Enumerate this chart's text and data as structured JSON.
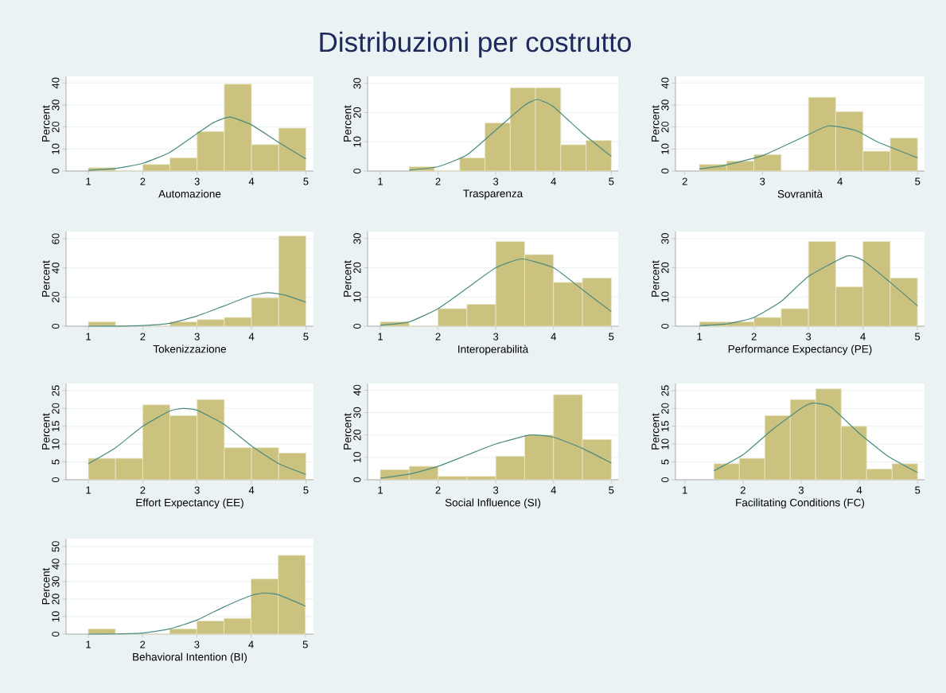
{
  "chart_data": [
    {
      "type": "other",
      "title": "Distribuzioni per costrutto"
    },
    {
      "type": "histogram",
      "xlabel": "Automazione",
      "ylabel": "Percent",
      "bins": [
        1,
        1.5,
        2,
        2.5,
        3,
        3.5,
        4,
        4.5,
        5
      ],
      "values": [
        1.5,
        0,
        3,
        6,
        18,
        39.5,
        12,
        19.5
      ],
      "color": "#cbc27f",
      "xlim": [
        0.59,
        5.14
      ],
      "ylim": [
        0,
        43
      ],
      "xticks": [
        1,
        2,
        3,
        4,
        5
      ],
      "yticks": [
        0,
        10,
        20,
        30,
        40
      ],
      "grid": "y",
      "series": [
        {
          "type": "line",
          "color": "#4b8b82",
          "x": [
            1,
            1.5,
            2,
            2.5,
            3,
            3.3,
            3.6,
            4,
            4.5,
            5
          ],
          "values": [
            0.3,
            1.2,
            3.5,
            8.5,
            17,
            22,
            24.5,
            21,
            13,
            5.5
          ]
        }
      ]
    },
    {
      "type": "histogram",
      "xlabel": "Trasparenza",
      "ylabel": "Percent",
      "bins": [
        1.5,
        1.9375,
        2.375,
        2.8125,
        3.25,
        3.6875,
        4.125,
        4.5625,
        5
      ],
      "values": [
        1.5,
        0,
        4.5,
        16.5,
        28.5,
        28.5,
        9,
        10.5
      ],
      "color": "#cbc27f",
      "xlim": [
        0.78,
        5.12
      ],
      "ylim": [
        0,
        32.4
      ],
      "xticks": [
        1,
        2,
        3,
        4,
        5
      ],
      "yticks": [
        0,
        10,
        20,
        30
      ],
      "grid": "y",
      "series": [
        {
          "type": "line",
          "color": "#4b8b82",
          "x": [
            1.5,
            2,
            2.5,
            3,
            3.5,
            3.72,
            4,
            4.5,
            5
          ],
          "values": [
            0.3,
            1.5,
            5.5,
            14,
            22.5,
            24.5,
            22,
            13,
            5
          ]
        }
      ]
    },
    {
      "type": "histogram",
      "xlabel": "Sovranità",
      "ylabel": "Percent",
      "bins": [
        2.1875,
        2.5391,
        2.8906,
        3.2422,
        3.5938,
        3.9453,
        4.2969,
        4.6484,
        5
      ],
      "values": [
        3,
        4.5,
        7.5,
        0,
        33.5,
        27,
        9,
        15
      ],
      "color": "#cbc27f",
      "xlim": [
        1.88,
        5.09
      ],
      "ylim": [
        0,
        43
      ],
      "xticks": [
        2,
        3,
        4,
        5
      ],
      "yticks": [
        0,
        10,
        20,
        30,
        40
      ],
      "grid": "y",
      "series": [
        {
          "type": "line",
          "color": "#4b8b82",
          "x": [
            2.19,
            2.5,
            3,
            3.5,
            3.85,
            4.2,
            4.5,
            5
          ],
          "values": [
            1,
            2.5,
            7,
            15,
            20.5,
            18.5,
            13,
            6
          ]
        }
      ]
    },
    {
      "type": "histogram",
      "xlabel": "Tokenizzazione",
      "ylabel": "Percent",
      "bins": [
        1,
        1.5,
        2,
        2.5,
        3,
        3.5,
        4,
        4.5,
        5
      ],
      "values": [
        3,
        0,
        0,
        3,
        4.5,
        6,
        19.5,
        62
      ],
      "color": "#cbc27f",
      "xlim": [
        0.59,
        5.14
      ],
      "ylim": [
        0,
        65
      ],
      "xticks": [
        1,
        2,
        3,
        4,
        5
      ],
      "yticks": [
        0,
        20,
        40,
        60
      ],
      "grid": "y",
      "series": [
        {
          "type": "line",
          "color": "#4b8b82",
          "x": [
            1,
            1.5,
            2,
            2.5,
            3,
            3.5,
            4,
            4.3,
            4.6,
            5
          ],
          "values": [
            0,
            0.1,
            0.5,
            2,
            7,
            14,
            21,
            23,
            21.5,
            16.5
          ]
        }
      ]
    },
    {
      "type": "histogram",
      "xlabel": "Interoperabilità",
      "ylabel": "Percent",
      "bins": [
        1,
        1.5,
        2,
        2.5,
        3,
        3.5,
        4,
        4.5,
        5
      ],
      "values": [
        1.5,
        0,
        6,
        7.5,
        29,
        24.5,
        15,
        16.5
      ],
      "color": "#cbc27f",
      "xlim": [
        0.78,
        5.12
      ],
      "ylim": [
        0,
        32.4
      ],
      "xticks": [
        1,
        2,
        3,
        4,
        5
      ],
      "yticks": [
        0,
        10,
        20,
        30
      ],
      "grid": "y",
      "series": [
        {
          "type": "line",
          "color": "#4b8b82",
          "x": [
            1,
            1.5,
            2,
            2.5,
            3,
            3.45,
            4,
            4.5,
            5
          ],
          "values": [
            0.3,
            1.5,
            6,
            13,
            20,
            23,
            20,
            12.5,
            5
          ]
        }
      ]
    },
    {
      "type": "histogram",
      "xlabel": "Performance Expectancy (PE)",
      "ylabel": "Percent",
      "bins": [
        1,
        1.5,
        2,
        2.5,
        3,
        3.5,
        4,
        4.5,
        5
      ],
      "values": [
        1.5,
        1.5,
        3,
        6,
        29,
        13.5,
        29,
        16.5
      ],
      "color": "#cbc27f",
      "xlim": [
        0.56,
        5.13
      ],
      "ylim": [
        0,
        32.4
      ],
      "xticks": [
        1,
        2,
        3,
        4,
        5
      ],
      "yticks": [
        0,
        10,
        20,
        30
      ],
      "grid": "y",
      "series": [
        {
          "type": "line",
          "color": "#4b8b82",
          "x": [
            1,
            1.5,
            2,
            2.5,
            3,
            3.7,
            4,
            4.5,
            5
          ],
          "values": [
            0.2,
            0.8,
            3,
            8.5,
            17,
            24,
            22.5,
            15,
            7
          ]
        }
      ]
    },
    {
      "type": "histogram",
      "xlabel": "Effort Expectancy (EE)",
      "ylabel": "Percent",
      "bins": [
        1,
        1.5,
        2,
        2.5,
        3,
        3.5,
        4,
        4.5,
        5
      ],
      "values": [
        6,
        6,
        21,
        18,
        22.5,
        9,
        9,
        7.5
      ],
      "color": "#cbc27f",
      "xlim": [
        0.59,
        5.14
      ],
      "ylim": [
        0,
        27
      ],
      "xticks": [
        1,
        2,
        3,
        4,
        5
      ],
      "yticks": [
        0,
        5,
        10,
        15,
        20,
        25
      ],
      "grid": "y",
      "series": [
        {
          "type": "line",
          "color": "#4b8b82",
          "x": [
            1,
            1.5,
            2,
            2.5,
            2.75,
            3,
            3.5,
            4,
            4.5,
            5
          ],
          "values": [
            4.5,
            9,
            15,
            19.3,
            20,
            19.5,
            15.5,
            9.5,
            4.5,
            1.5
          ]
        }
      ]
    },
    {
      "type": "histogram",
      "xlabel": "Social Influence (SI)",
      "ylabel": "Percent",
      "bins": [
        1,
        1.5,
        2,
        2.5,
        3,
        3.5,
        4,
        4.5,
        5
      ],
      "values": [
        4.5,
        6,
        1.5,
        1.5,
        10.5,
        20,
        38,
        18
      ],
      "color": "#cbc27f",
      "xlim": [
        0.78,
        5.12
      ],
      "ylim": [
        0,
        43
      ],
      "xticks": [
        1,
        2,
        3,
        4,
        5
      ],
      "yticks": [
        0,
        10,
        20,
        30,
        40
      ],
      "grid": "y",
      "series": [
        {
          "type": "line",
          "color": "#4b8b82",
          "x": [
            1,
            1.5,
            2,
            2.5,
            3,
            3.6,
            4,
            4.5,
            5
          ],
          "values": [
            0.7,
            2.5,
            6,
            11,
            16,
            20,
            19,
            14,
            7.5
          ]
        }
      ]
    },
    {
      "type": "histogram",
      "xlabel": "Facilitating Conditions (FC)",
      "ylabel": "Percent",
      "bins": [
        1.5,
        1.9375,
        2.375,
        2.8125,
        3.25,
        3.6875,
        4.125,
        4.5625,
        5
      ],
      "values": [
        4.5,
        6,
        18,
        22.5,
        25.5,
        15,
        3,
        4.5
      ],
      "color": "#cbc27f",
      "xlim": [
        0.84,
        5.12
      ],
      "ylim": [
        0,
        27
      ],
      "xticks": [
        1,
        2,
        3,
        4,
        5
      ],
      "yticks": [
        0,
        5,
        10,
        15,
        20,
        25
      ],
      "grid": "y",
      "series": [
        {
          "type": "line",
          "color": "#4b8b82",
          "x": [
            1.5,
            2,
            2.5,
            3,
            3.2,
            3.5,
            4,
            4.5,
            5
          ],
          "values": [
            2.5,
            7,
            14,
            20,
            21.5,
            20.5,
            13,
            6.5,
            2
          ]
        }
      ]
    },
    {
      "type": "histogram",
      "xlabel": "Behavioral Intention (BI)",
      "ylabel": "Percent",
      "bins": [
        1,
        1.5,
        2,
        2.5,
        3,
        3.5,
        4,
        4.5,
        5
      ],
      "values": [
        3,
        0,
        0,
        3,
        7.5,
        9,
        31.5,
        45
      ],
      "color": "#cbc27f",
      "xlim": [
        0.59,
        5.15
      ],
      "ylim": [
        0,
        54.5
      ],
      "xticks": [
        1,
        2,
        3,
        4,
        5
      ],
      "yticks": [
        0,
        10,
        20,
        30,
        40,
        50
      ],
      "grid": "y",
      "series": [
        {
          "type": "line",
          "color": "#4b8b82",
          "x": [
            1,
            1.5,
            2,
            2.5,
            3,
            3.5,
            4,
            4.25,
            4.5,
            5
          ],
          "values": [
            0,
            0.1,
            0.6,
            3,
            8,
            15.5,
            22,
            23.5,
            22.5,
            16
          ]
        }
      ]
    }
  ]
}
